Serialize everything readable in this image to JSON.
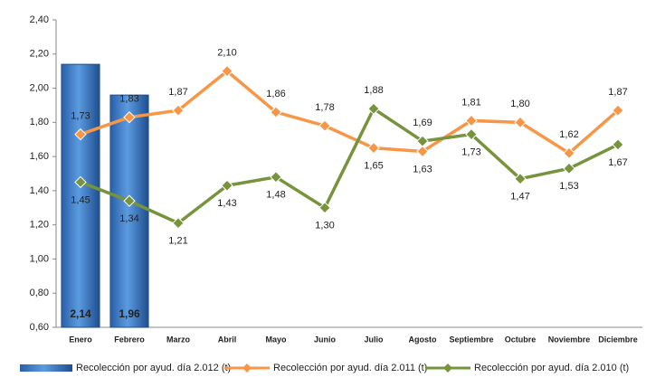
{
  "chart_data": {
    "type": "bar-line",
    "categories": [
      "Enero",
      "Febrero",
      "Marzo",
      "Abril",
      "Mayo",
      "Junio",
      "Julio",
      "Agosto",
      "Septiembre",
      "Octubre",
      "Noviembre",
      "Diciembre"
    ],
    "ylim": [
      0.6,
      2.4
    ],
    "yticks": [
      {
        "value": 0.6,
        "label": "0,60"
      },
      {
        "value": 0.8,
        "label": "0,80"
      },
      {
        "value": 1.0,
        "label": "1,00"
      },
      {
        "value": 1.2,
        "label": "1,20"
      },
      {
        "value": 1.4,
        "label": "1,40"
      },
      {
        "value": 1.6,
        "label": "1,60"
      },
      {
        "value": 1.8,
        "label": "1,80"
      },
      {
        "value": 2.0,
        "label": "2,00"
      },
      {
        "value": 2.2,
        "label": "2,20"
      },
      {
        "value": 2.4,
        "label": "2,40"
      }
    ],
    "legend": "bottom",
    "series": [
      {
        "name": "Recolección por ayud. día 2.012 (t)",
        "type": "bar",
        "color": "#3a78c9",
        "values": [
          2.14,
          1.96,
          null,
          null,
          null,
          null,
          null,
          null,
          null,
          null,
          null,
          null
        ],
        "value_labels": [
          "2,14",
          "1,96",
          null,
          null,
          null,
          null,
          null,
          null,
          null,
          null,
          null,
          null
        ]
      },
      {
        "name": "Recolección por ayud. día 2.011 (t)",
        "type": "line",
        "color": "#f79646",
        "values": [
          1.73,
          1.83,
          1.87,
          2.1,
          1.86,
          1.78,
          1.65,
          1.63,
          1.81,
          1.8,
          1.62,
          1.87
        ],
        "value_labels": [
          "1,73",
          "1,83",
          "1,87",
          "2,10",
          "1,86",
          "1,78",
          "1,65",
          "1,63",
          "1,81",
          "1,80",
          "1,62",
          "1,87"
        ]
      },
      {
        "name": "Recolección por ayud. día 2.010 (t)",
        "type": "line",
        "color": "#77933c",
        "values": [
          1.45,
          1.34,
          1.21,
          1.43,
          1.48,
          1.3,
          1.88,
          1.69,
          1.73,
          1.47,
          1.53,
          1.67
        ],
        "value_labels": [
          "1,45",
          "1,34",
          "1,21",
          "1,43",
          "1,48",
          "1,30",
          "1,88",
          "1,69",
          "1,73",
          "1,47",
          "1,53",
          "1,67"
        ]
      }
    ]
  }
}
